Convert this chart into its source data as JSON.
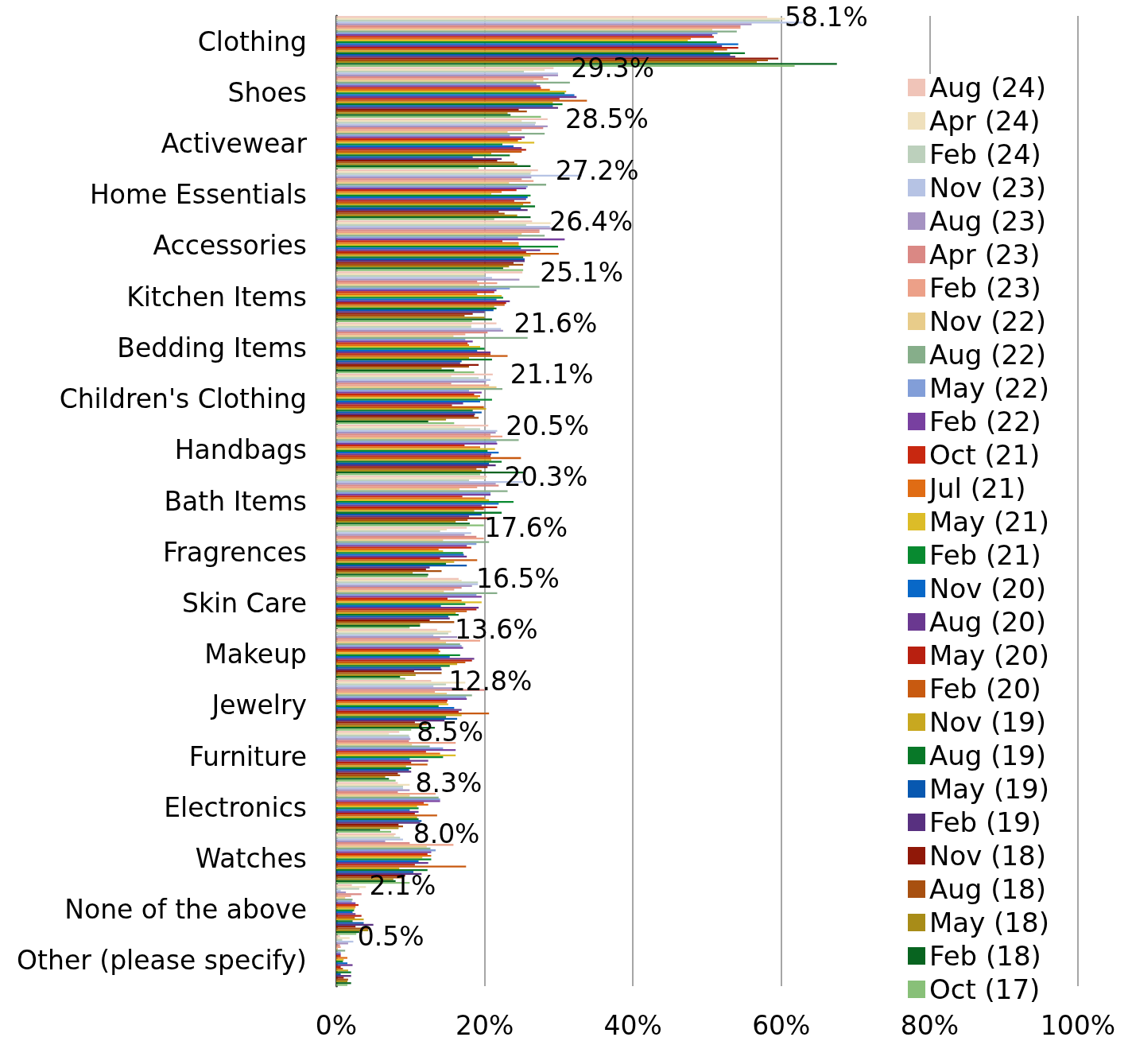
{
  "chart_data": {
    "type": "bar",
    "orientation": "horizontal",
    "categories": [
      "Clothing",
      "Shoes",
      "Activewear",
      "Home Essentials",
      "Accessories",
      "Kitchen Items",
      "Bedding Items",
      "Children's Clothing",
      "Handbags",
      "Bath Items",
      "Fragrences",
      "Skin Care",
      "Makeup",
      "Jewelry",
      "Furniture",
      "Electronics",
      "Watches",
      "None of the above",
      "Other (please specify)"
    ],
    "series": [
      {
        "name": "Aug (24)",
        "color": "#f0c4b8",
        "values": [
          58.1,
          29.3,
          28.5,
          27.2,
          26.4,
          25.1,
          21.6,
          21.1,
          20.5,
          20.3,
          17.6,
          16.5,
          13.6,
          12.8,
          8.5,
          8.3,
          8.0,
          2.1,
          0.5
        ],
        "value_labels": [
          "58.1%",
          "29.3%",
          "28.5%",
          "27.2%",
          "26.4%",
          "25.1%",
          "21.6%",
          "21.1%",
          "20.5%",
          "20.3%",
          "17.6%",
          "16.5%",
          "13.6%",
          "12.8%",
          "8.5%",
          "8.3%",
          "8.0%",
          "2.1%",
          "0.5%"
        ]
      },
      {
        "name": "Apr (24)",
        "color": "#efe0bc",
        "values": [
          60.5,
          28.1,
          25,
          26.3,
          28.9,
          20,
          18.2,
          15.5,
          17.3,
          20.1,
          14.9,
          16.9,
          15.5,
          17.4,
          7.1,
          9.9,
          7.8,
          4,
          1.8
        ]
      },
      {
        "name": "Feb (24)",
        "color": "#bcd0bc",
        "values": [
          59.8,
          25.3,
          26.9,
          26.2,
          25.6,
          20,
          18.2,
          19.2,
          19.4,
          17.9,
          14,
          19.1,
          15.1,
          14.8,
          9.8,
          9,
          8.6,
          3.1,
          0.8
        ]
      },
      {
        "name": "Nov (23)",
        "color": "#b6c3e4",
        "values": [
          62.9,
          29.9,
          26.8,
          33.1,
          28.8,
          21,
          22.2,
          20.8,
          21.7,
          25.2,
          18.2,
          19.1,
          13.1,
          13.1,
          9.9,
          9,
          9,
          0.6,
          2.3
        ]
      },
      {
        "name": "Aug (23)",
        "color": "#a592c2",
        "values": [
          56,
          29.9,
          28.5,
          26.3,
          29.4,
          24.7,
          22.5,
          20.2,
          21.5,
          21.5,
          17.3,
          18.3,
          16.3,
          16.1,
          10,
          9.9,
          6.6,
          1.3,
          1.6
        ]
      },
      {
        "name": "Apr (23)",
        "color": "#da8884",
        "values": [
          54.5,
          27.9,
          27.9,
          25,
          27.4,
          19,
          20.4,
          15.5,
          20.8,
          21.9,
          18.9,
          16.9,
          14,
          20,
          9.8,
          8.3,
          9.9,
          3.4,
          0.5
        ]
      },
      {
        "name": "Feb (23)",
        "color": "#eca088",
        "values": [
          54.5,
          28.6,
          25,
          26.6,
          27.4,
          21.7,
          17.4,
          20.6,
          22.4,
          19,
          19.9,
          15.9,
          19.4,
          13.3,
          16.1,
          13.4,
          15.8,
          2,
          0.6
        ]
      },
      {
        "name": "Nov (22)",
        "color": "#e8cc8a",
        "values": [
          50.7,
          26.6,
          23.1,
          23.3,
          25,
          19.3,
          15.8,
          21.6,
          20.8,
          16.6,
          14.4,
          14.5,
          14.8,
          14.9,
          10.2,
          9.9,
          12.2,
          1.2,
          0.2
        ]
      },
      {
        "name": "Aug (22)",
        "color": "#86ae8a",
        "values": [
          54,
          31.5,
          28.1,
          28.3,
          28.1,
          27.4,
          25.8,
          22.4,
          24.6,
          23.1,
          20.6,
          21.7,
          16.7,
          18.3,
          12.6,
          13.8,
          12.7,
          2.2,
          1.2
        ]
      },
      {
        "name": "May (22)",
        "color": "#829ed8",
        "values": [
          51.4,
          27,
          23.4,
          25.8,
          24.5,
          23.4,
          17.4,
          17.9,
          21.6,
          20.8,
          18.9,
          18.9,
          16.9,
          17.5,
          14.4,
          14,
          13.4,
          2.1,
          0.6
        ]
      },
      {
        "name": "Feb (22)",
        "color": "#7840a0",
        "values": [
          50.7,
          27.5,
          25.4,
          25.6,
          30.8,
          21.6,
          18.4,
          19.6,
          21.7,
          20.8,
          17.6,
          19.6,
          17.1,
          17.6,
          16.1,
          14,
          12.8,
          2.6,
          0.6
        ]
      },
      {
        "name": "Oct (21)",
        "color": "#c82810",
        "values": [
          50.9,
          27.6,
          25,
          24.3,
          22.4,
          21.3,
          17.7,
          18.6,
          17.3,
          17,
          18.2,
          15,
          13.8,
          15,
          12.1,
          11.8,
          12.3,
          3,
          0.6
        ]
      },
      {
        "name": "Jul (21)",
        "color": "#e06c14",
        "values": [
          47.8,
          28.8,
          24.5,
          22.3,
          24.6,
          19,
          17.9,
          19.4,
          19.4,
          20,
          13.8,
          16.9,
          14,
          14.9,
          14,
          12.4,
          12.8,
          2.6,
          1.5
        ]
      },
      {
        "name": "May (21)",
        "color": "#dcbc28",
        "values": [
          47.4,
          31,
          26.7,
          20.9,
          24.6,
          22.3,
          19.4,
          19.1,
          21.4,
          20.6,
          14.4,
          19.6,
          13.8,
          15.1,
          16.1,
          10.9,
          11.6,
          2.5,
          1
        ]
      },
      {
        "name": "Feb (21)",
        "color": "#088a30",
        "values": [
          51.3,
          30.8,
          22.4,
          26.2,
          29.9,
          22.5,
          20,
          21,
          20.4,
          23.9,
          17.1,
          17.4,
          16.7,
          13.8,
          14.4,
          11.1,
          12.8,
          2.4,
          0.9
        ]
      },
      {
        "name": "Nov (20)",
        "color": "#0868c8",
        "values": [
          54.2,
          32.1,
          23.9,
          25.8,
          24.9,
          21.6,
          19,
          19.4,
          21.9,
          21.9,
          17.2,
          14.1,
          15.3,
          15.9,
          9.9,
          9.9,
          11.1,
          2.2,
          1.5
        ]
      },
      {
        "name": "Aug (20)",
        "color": "#6a3890",
        "values": [
          52,
          32.4,
          25,
          25.6,
          27.5,
          23.4,
          20.8,
          17.1,
          20.9,
          19.6,
          17.6,
          19.2,
          18.6,
          16.9,
          12.4,
          11.1,
          12.4,
          2.6,
          2.2
        ]
      },
      {
        "name": "May (20)",
        "color": "#b82010",
        "values": [
          54.2,
          30.1,
          25.6,
          24,
          25.6,
          22.9,
          20.8,
          15.6,
          20.8,
          21.7,
          14,
          18.9,
          18.3,
          16.5,
          10.1,
          10.6,
          10.6,
          3.4,
          0.6
        ]
      },
      {
        "name": "Feb (20)",
        "color": "#c85a10",
        "values": [
          52.7,
          33.8,
          25,
          26.2,
          30,
          22.7,
          23.1,
          19.9,
          24.9,
          19.9,
          19,
          17.6,
          17.4,
          20.6,
          12.3,
          13.6,
          17.5,
          2.5,
          0.9
        ]
      },
      {
        "name": "Nov (19)",
        "color": "#c8a820",
        "values": [
          50.9,
          29.2,
          20.9,
          25.2,
          26.2,
          21.3,
          17.9,
          20.2,
          20.9,
          18.6,
          15.9,
          16.1,
          16.3,
          16.9,
          9.4,
          10.9,
          8.5,
          3.7,
          1.6
        ]
      },
      {
        "name": "Aug (19)",
        "color": "#087828",
        "values": [
          55.1,
          30.5,
          23.4,
          26.8,
          25.2,
          21.6,
          21,
          18.4,
          22.3,
          22.3,
          14.8,
          16.5,
          15.3,
          14.8,
          10.1,
          11.1,
          12.3,
          2.2,
          2
        ]
      },
      {
        "name": "May (19)",
        "color": "#0858b0",
        "values": [
          53.1,
          29.2,
          18.4,
          24.9,
          25.4,
          21.2,
          16.9,
          19.6,
          20.6,
          19.6,
          17.6,
          15.1,
          14.1,
          16.3,
          9.8,
          11.5,
          10.4,
          3.7,
          0.6
        ]
      },
      {
        "name": "Feb (19)",
        "color": "#583080",
        "values": [
          53.8,
          29.9,
          22.3,
          25.8,
          25.4,
          20,
          16.7,
          18.7,
          21.5,
          17.9,
          12.6,
          15.3,
          14.2,
          14.6,
          10.1,
          11.3,
          11.5,
          5,
          2
        ]
      },
      {
        "name": "Nov (18)",
        "color": "#901808",
        "values": [
          59.6,
          24.6,
          21.7,
          21.9,
          23.9,
          18.4,
          19.2,
          18.6,
          20.4,
          21.1,
          12.1,
          12.6,
          10.5,
          10.6,
          8.3,
          8.4,
          9.3,
          2.6,
          1
        ]
      },
      {
        "name": "Aug (18)",
        "color": "#a85010",
        "values": [
          58.2,
          25.7,
          24,
          22.7,
          25.2,
          17.3,
          17.9,
          19.2,
          18.9,
          17.7,
          14.2,
          15.9,
          14.2,
          12.2,
          8.6,
          9,
          9,
          4.3,
          1.6
        ]
      },
      {
        "name": "May (18)",
        "color": "#a88c18",
        "values": [
          56.7,
          23.1,
          24.4,
          24.4,
          23.3,
          20,
          14.2,
          14.8,
          19.6,
          16.1,
          10.3,
          11.3,
          10.7,
          11.5,
          6.6,
          8.4,
          7.7,
          4.3,
          1.5
        ]
      },
      {
        "name": "Feb (18)",
        "color": "#086420",
        "values": [
          67.5,
          23.5,
          26.2,
          26.2,
          22.5,
          21,
          15.9,
          12.4,
          25.2,
          18,
          12.4,
          11.3,
          8.6,
          13.3,
          7.1,
          5.9,
          8,
          3.1,
          2
        ]
      },
      {
        "name": "Oct (17)",
        "color": "#88c078",
        "values": [
          61.8,
          27.6,
          19.2,
          21.3,
          25.2,
          18.3,
          18.6,
          15.9,
          19.4,
          19.9,
          12.3,
          9.9,
          9.3,
          10.1,
          8,
          7.4,
          9.9,
          2.7,
          1.5
        ]
      }
    ],
    "xlim": [
      0,
      100
    ],
    "xticks": [
      {
        "value": 0,
        "label": "0%"
      },
      {
        "value": 20,
        "label": "20%"
      },
      {
        "value": 40,
        "label": "40%"
      },
      {
        "value": 60,
        "label": "60%"
      },
      {
        "value": 80,
        "label": "80%"
      },
      {
        "value": 100,
        "label": "100%"
      }
    ],
    "grid": "x",
    "legend": "right"
  }
}
